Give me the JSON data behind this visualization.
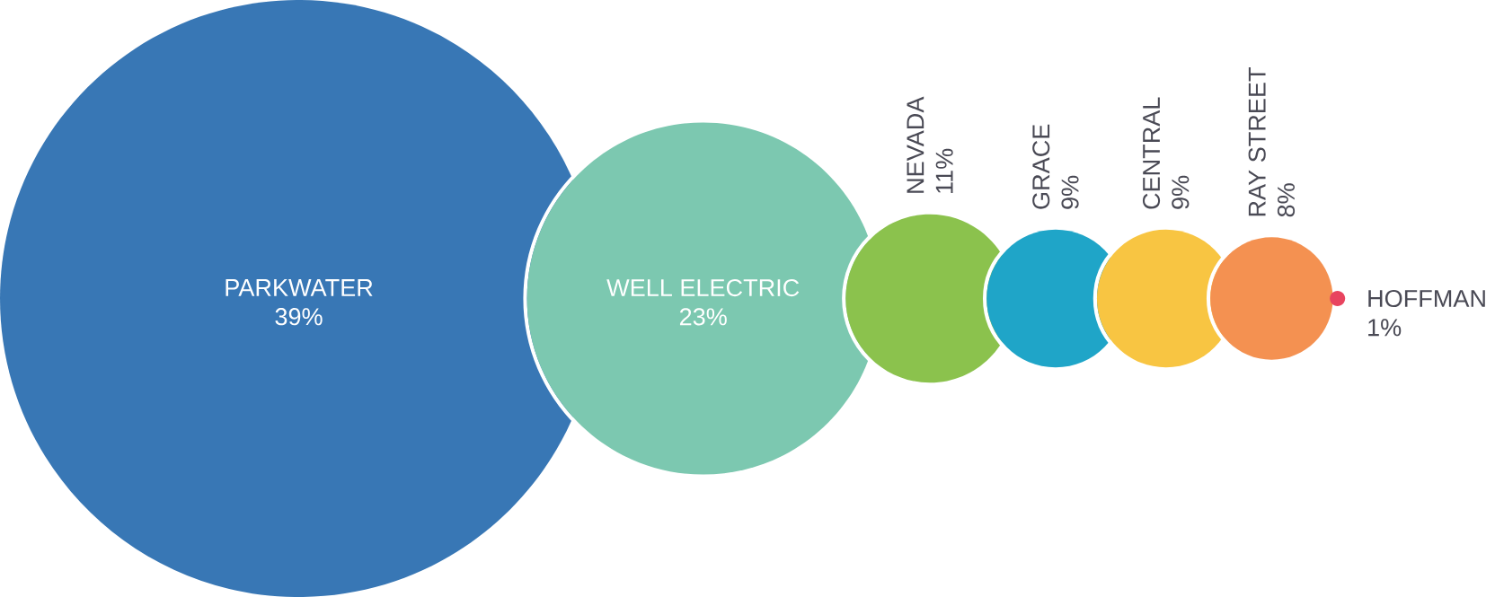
{
  "chart_data": {
    "type": "other",
    "categories": [
      "PARKWATER",
      "WELL ELECTRIC",
      "NEVADA",
      "GRACE",
      "CENTRAL",
      "RAY STREET",
      "HOFFMAN"
    ],
    "values": [
      39,
      23,
      11,
      9,
      9,
      8,
      1
    ],
    "value_labels": [
      "39%",
      "23%",
      "11%",
      "9%",
      "9%",
      "8%",
      "1%"
    ],
    "colors": [
      "#3877b5",
      "#7cc8b0",
      "#8bc24d",
      "#1fa5c8",
      "#f8c542",
      "#f49151",
      "#e8445f"
    ]
  }
}
